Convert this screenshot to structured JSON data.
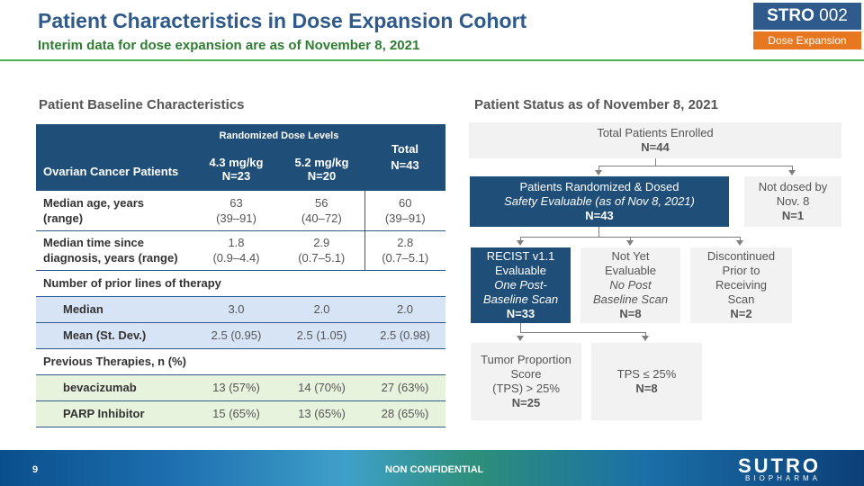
{
  "header": {
    "title": "Patient Characteristics in Dose Expansion Cohort",
    "subtitle": "Interim data for dose expansion are as of November 8, 2021",
    "badge_main": "STRO",
    "badge_num": "002",
    "badge_sub": "Dose Expansion",
    "colors": {
      "title": "#2e5a8c",
      "subtitle": "#2e7d32",
      "badge": "#2e5a8c",
      "badge_sub": "#e87722"
    }
  },
  "left": {
    "heading": "Patient Baseline Characteristics",
    "table": {
      "group_label": "Randomized Dose Levels",
      "col_label": "Ovarian Cancer Patients",
      "dose1": "4.3 mg/kg",
      "dose1_n": "N=23",
      "dose2": "5.2 mg/kg",
      "dose2_n": "N=20",
      "total": "Total",
      "total_n": "N=43",
      "rows": [
        {
          "label": "Median age, years",
          "label2": "(range)",
          "d1": "63",
          "d1b": "(39–91)",
          "d2": "56",
          "d2b": "(40–72)",
          "t": "60",
          "tb": "(39–91)"
        },
        {
          "label": "Median time since",
          "label2": "diagnosis, years (range)",
          "d1": "1.8",
          "d1b": "(0.9–4.4)",
          "d2": "2.9",
          "d2b": "(0.7–5.1)",
          "t": "2.8",
          "tb": "(0.7–5.1)"
        },
        {
          "label": "Number of prior lines of therapy"
        },
        {
          "label": "Median",
          "d1": "3.0",
          "d2": "2.0",
          "t": "2.0"
        },
        {
          "label": "Mean (St. Dev.)",
          "d1": "2.5 (0.95)",
          "d2": "2.5 (1.05)",
          "t": "2.5 (0.98)"
        },
        {
          "label": "Previous Therapies, n (%)"
        },
        {
          "label": "bevacizumab",
          "d1": "13 (57%)",
          "d2": "14 (70%)",
          "t": "27 (63%)"
        },
        {
          "label": "PARP Inhibitor",
          "d1": "15 (65%)",
          "d2": "13 (65%)",
          "t": "28 (65%)"
        }
      ]
    }
  },
  "right": {
    "heading": "Patient Status as of November 8, 2021",
    "enrolled": {
      "label": "Total Patients Enrolled",
      "n": "N=44"
    },
    "randomized": {
      "label": "Patients Randomized & Dosed",
      "sub": "Safety Evaluable (as of Nov 8, 2021)",
      "n": "N=43"
    },
    "not_dosed": {
      "l1": "Not dosed by",
      "l2": "Nov. 8",
      "n": "N=1"
    },
    "recist": {
      "l1": "RECIST v1.1",
      "l2": "Evaluable",
      "l3": "One Post-",
      "l4": "Baseline Scan",
      "n": "N=33"
    },
    "not_yet": {
      "l1": "Not Yet",
      "l2": "Evaluable",
      "l3": "No Post",
      "l4": "Baseline Scan",
      "n": "N=8"
    },
    "discontinued": {
      "l1": "Discontinued",
      "l2": "Prior to",
      "l3": "Receiving",
      "l4": "Scan",
      "n": "N=2"
    },
    "tps_high": {
      "l1": "Tumor Proportion",
      "l2": "Score",
      "l3": "(TPS) > 25%",
      "n": "N=25"
    },
    "tps_low": {
      "l1": "TPS ≤ 25%",
      "n": "N=8"
    }
  },
  "footer": {
    "page": "9",
    "confidential": "NON CONFIDENTIAL",
    "logo": "SUTRO",
    "logo_sub": "BIOPHARMA"
  }
}
